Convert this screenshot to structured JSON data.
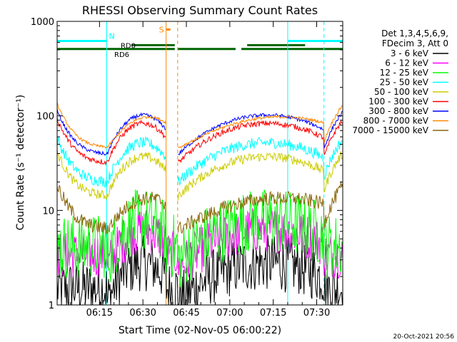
{
  "chart_data": {
    "type": "line",
    "title": "RHESSI Observing Summary Count Rates",
    "xlabel": "Start Time (02-Nov-05 06:00:22)",
    "ylabel": "Count Rate (s⁻¹ detector⁻¹)",
    "y_scale": "log",
    "ylim": [
      1,
      1000
    ],
    "xlim_minutes": [
      0.37,
      99.0
    ],
    "x_ticks": [
      {
        "t": 15,
        "label": "06:15"
      },
      {
        "t": 30,
        "label": "06:30"
      },
      {
        "t": 45,
        "label": "06:45"
      },
      {
        "t": 60,
        "label": "07:00"
      },
      {
        "t": 75,
        "label": "07:15"
      },
      {
        "t": 90,
        "label": "07:30"
      }
    ],
    "y_ticks": [
      {
        "v": 1,
        "label": "1"
      },
      {
        "v": 10,
        "label": "10"
      },
      {
        "v": 100,
        "label": "100"
      },
      {
        "v": 1000,
        "label": "1000"
      }
    ],
    "legend_header": [
      "Det 1,3,4,5,6,9,",
      "FDecim 3, Att 0"
    ],
    "legend_position": "right",
    "series": [
      {
        "name": "3 - 6 keV",
        "color": "#000000",
        "level": 1.5,
        "noise": 0.6
      },
      {
        "name": "6 - 12 keV",
        "color": "#ff00ff",
        "level": 3.4,
        "noise": 0.5
      },
      {
        "name": "12 - 25 keV",
        "color": "#00ff00",
        "level": 4.2,
        "noise": 0.7
      },
      {
        "name": "25 - 50 keV",
        "color": "#00ffff",
        "level": 28,
        "noise": 0.12
      },
      {
        "name": "50 - 100 keV",
        "color": "#cccc00",
        "level": 20,
        "noise": 0.1
      },
      {
        "name": "100 - 300 keV",
        "color": "#ff0000",
        "level": 45,
        "noise": 0.06
      },
      {
        "name": "300 - 800 keV",
        "color": "#0000ff",
        "level": 55,
        "noise": 0.04
      },
      {
        "name": "800 - 7000 keV",
        "color": "#ff8800",
        "level": 65,
        "noise": 0.03
      },
      {
        "name": "7000 - 15000 keV",
        "color": "#8b6508",
        "level": 9,
        "noise": 0.15
      }
    ],
    "night_intervals": [
      [
        0.37,
        17.5
      ],
      [
        38.0,
        42.0
      ],
      [
        92.5,
        99.0
      ]
    ],
    "saa_interval": [
      38.0,
      42.0
    ],
    "flags": {
      "N": {
        "label": "N",
        "color": "#00ffff",
        "intervals": [
          [
            0.37,
            17.5
          ],
          [
            80.0,
            99.0
          ]
        ]
      },
      "S": {
        "label": "S",
        "color": "#ff8800",
        "intervals": [
          [
            38.0,
            39.5
          ]
        ]
      },
      "RD0": {
        "label": "RD0",
        "color": "#006400",
        "intervals": [
          [
            26.0,
            41.0
          ],
          [
            66.0,
            86.0
          ]
        ]
      },
      "RD6": {
        "label": "RD6",
        "color": "#006400",
        "intervals": [
          [
            0.37,
            41.0
          ],
          [
            42.0,
            62.0
          ],
          [
            64.0,
            99.0
          ]
        ]
      }
    }
  },
  "footer": {
    "date": "20-Oct-2021 20:56"
  }
}
